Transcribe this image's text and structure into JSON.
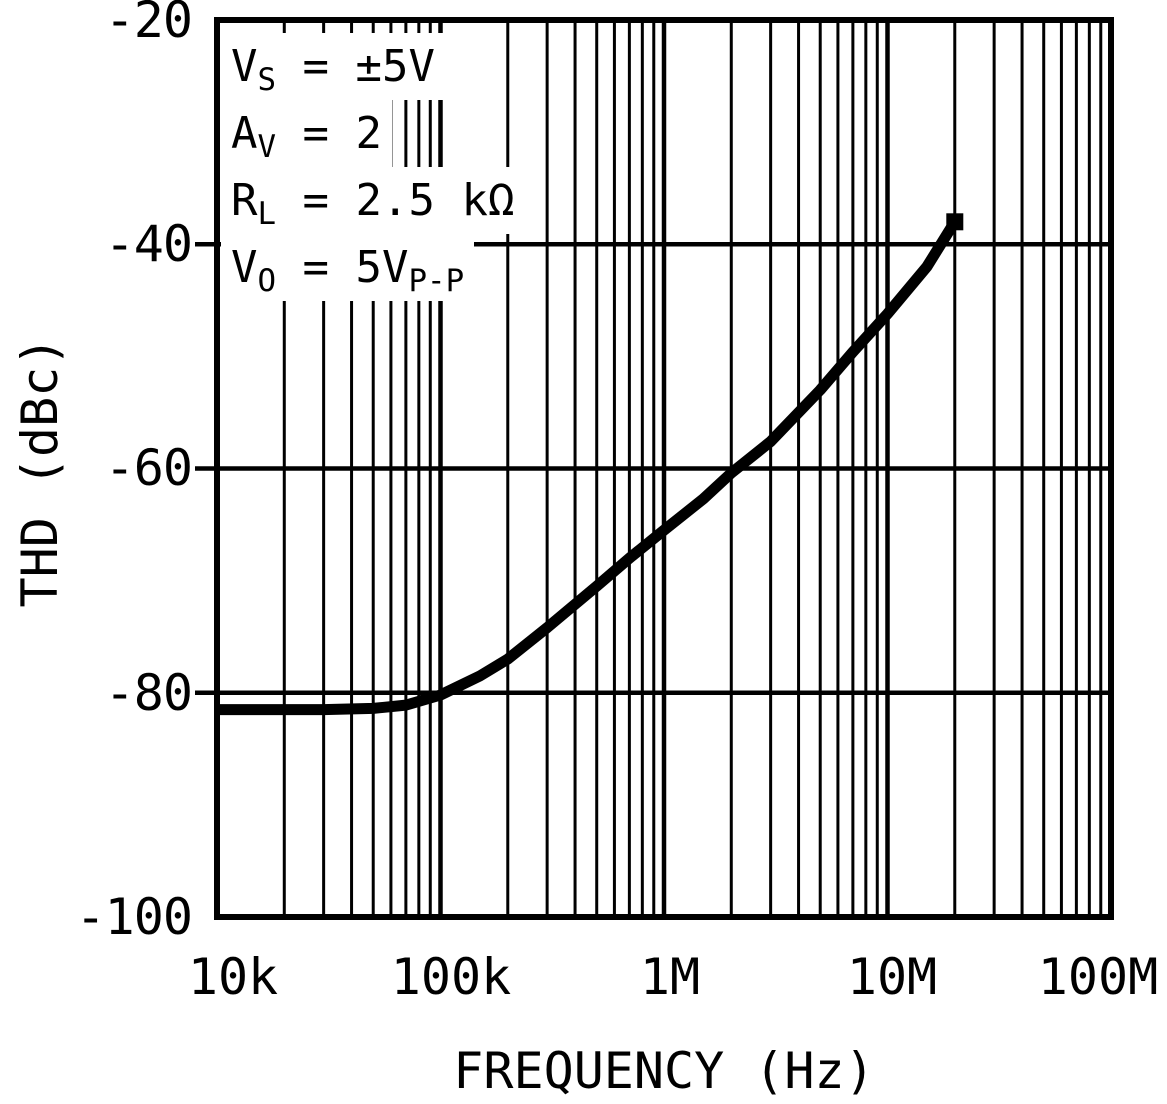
{
  "figure": {
    "y_axis": {
      "label": "THD (dBc)",
      "ticks": [
        "-20",
        "-40",
        "-60",
        "-80",
        "-100"
      ]
    },
    "x_axis": {
      "label": "FREQUENCY (Hz)",
      "ticks": [
        "10k",
        "100k",
        "1M",
        "10M",
        "100M"
      ]
    },
    "annotation": {
      "lines": [
        {
          "segments": [
            {
              "text": "V"
            },
            {
              "sub": "S"
            },
            {
              "text": " = ±5V"
            }
          ]
        },
        {
          "segments": [
            {
              "text": "A"
            },
            {
              "sub": "V"
            },
            {
              "text": " = 2"
            }
          ]
        },
        {
          "segments": [
            {
              "text": "R"
            },
            {
              "sub": "L"
            },
            {
              "text": " = 2.5 kΩ"
            }
          ]
        },
        {
          "segments": [
            {
              "text": "V"
            },
            {
              "sub": "O"
            },
            {
              "text": " = 5V"
            },
            {
              "sub": "P-P"
            }
          ]
        }
      ]
    },
    "colors": {
      "foreground": "#000000",
      "background": "#ffffff"
    }
  },
  "chart_data": {
    "type": "line",
    "title": "",
    "xlabel": "FREQUENCY (Hz)",
    "ylabel": "THD (dBc)",
    "x_scale": "log",
    "xlim": [
      10000,
      100000000
    ],
    "ylim": [
      -100,
      -20
    ],
    "x_tick_labels": [
      "10k",
      "100k",
      "1M",
      "10M",
      "100M"
    ],
    "x_tick_values": [
      10000,
      100000,
      1000000,
      10000000,
      100000000
    ],
    "y_tick_values": [
      -20,
      -40,
      -60,
      -80,
      -100
    ],
    "grid": "log-x-minor-and-major, 20dB-major-y",
    "legend": "none",
    "annotations": [
      "VS = ±5V",
      "AV = 2",
      "RL = 2.5 kΩ",
      "VO = 5VP-P"
    ],
    "series": [
      {
        "name": "THD",
        "color": "#000000",
        "line_width": 11,
        "end_marker": "filled-square",
        "points": [
          [
            10000,
            -81.5
          ],
          [
            15000,
            -81.5
          ],
          [
            20000,
            -81.5
          ],
          [
            30000,
            -81.5
          ],
          [
            50000,
            -81.4
          ],
          [
            70000,
            -81.1
          ],
          [
            100000,
            -80.2
          ],
          [
            150000,
            -78.5
          ],
          [
            200000,
            -77.0
          ],
          [
            300000,
            -74.2
          ],
          [
            500000,
            -70.5
          ],
          [
            700000,
            -68.0
          ],
          [
            1000000,
            -65.5
          ],
          [
            1500000,
            -62.7
          ],
          [
            2000000,
            -60.4
          ],
          [
            3000000,
            -57.6
          ],
          [
            5000000,
            -53.0
          ],
          [
            7000000,
            -49.6
          ],
          [
            10000000,
            -46.2
          ],
          [
            15000000,
            -42.0
          ],
          [
            20000000,
            -38.0
          ]
        ]
      }
    ]
  }
}
